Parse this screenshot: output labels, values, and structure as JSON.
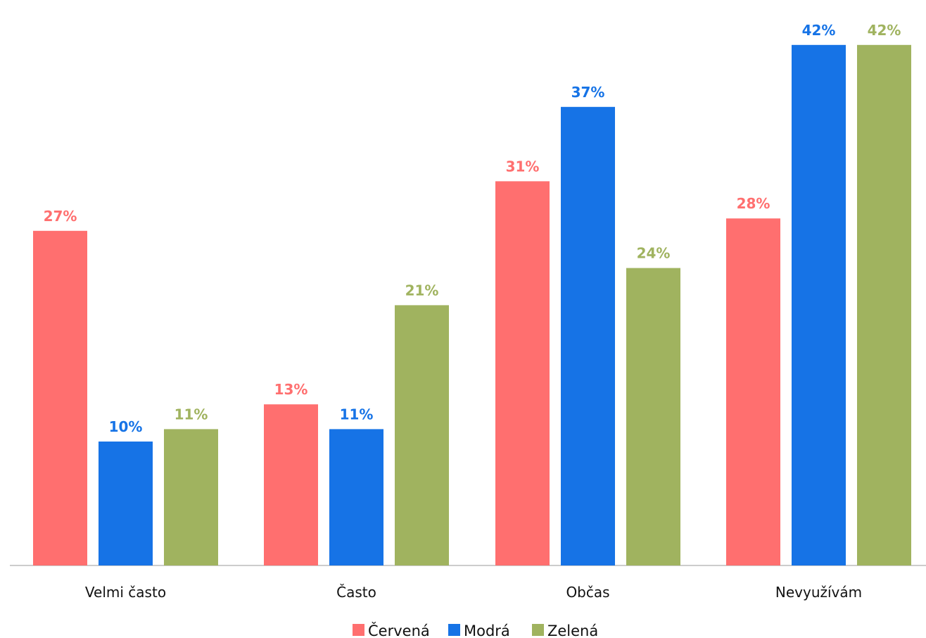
{
  "chart_data": {
    "type": "bar",
    "categories": [
      "Velmi často",
      "Často",
      "Občas",
      "Nevyužívám"
    ],
    "series": [
      {
        "name": "Červená",
        "color": "#ff6f6f",
        "values": [
          27,
          13,
          31,
          28
        ],
        "labels": [
          "27%",
          "13%",
          "31%",
          "28%"
        ]
      },
      {
        "name": "Modrá",
        "color": "#1673e6",
        "values": [
          10,
          11,
          37,
          42
        ],
        "labels": [
          "10%",
          "11%",
          "37%",
          "42%"
        ]
      },
      {
        "name": "Zelená",
        "color": "#a0b35f",
        "values": [
          11,
          21,
          24,
          42
        ],
        "labels": [
          "11%",
          "21%",
          "24%",
          "42%"
        ]
      }
    ],
    "ylim": [
      0,
      45
    ],
    "grid": false,
    "legend": "bottom-center",
    "baseline_color": "#cccccc"
  }
}
